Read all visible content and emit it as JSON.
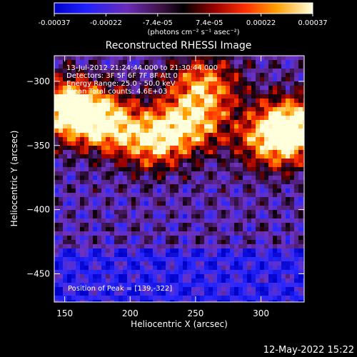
{
  "chart_data": {
    "type": "heatmap",
    "title": "Reconstructed RHESSI Image",
    "xlabel": "Heliocentric X (arcsec)",
    "ylabel": "Heliocentric Y (arcsec)",
    "xlim": [
      142,
      333
    ],
    "ylim": [
      -472,
      -280
    ],
    "xticks": [
      150,
      200,
      250,
      300
    ],
    "yticks": [
      -300,
      -350,
      -400,
      -450
    ],
    "colorbar": {
      "min": -0.00037,
      "max": 0.00037,
      "tick_labels": [
        "-0.00037",
        "-0.00022",
        "-7.4e-05",
        "7.4e-05",
        "0.00022",
        "0.00037"
      ],
      "unit_label": "(photons cm⁻² s⁻¹ asec⁻²)"
    },
    "annotations": [
      "13-Jul-2012 21:24:44.000 to 21:30:44.000",
      "Detectors: 3F 5F 6F 7F 8F  Att 0",
      "Energy Range: 25.0 - 50.0 keV",
      "Clean    Total counts: 4.6E+03"
    ],
    "peak_label": "Position of Peak = [139,-322]",
    "peak": [
      139,
      -322
    ],
    "bright_regions": [
      {
        "x": 150,
        "y": -318,
        "level": 1.0
      },
      {
        "x": 175,
        "y": -330,
        "level": 0.85
      },
      {
        "x": 215,
        "y": -345,
        "level": 0.8
      },
      {
        "x": 245,
        "y": -330,
        "level": 0.75
      },
      {
        "x": 255,
        "y": -300,
        "level": 0.7
      },
      {
        "x": 310,
        "y": -345,
        "level": 0.85
      },
      {
        "x": 325,
        "y": -330,
        "level": 0.8
      }
    ]
  },
  "footer": {
    "date": "12-May-2022 15:22"
  }
}
